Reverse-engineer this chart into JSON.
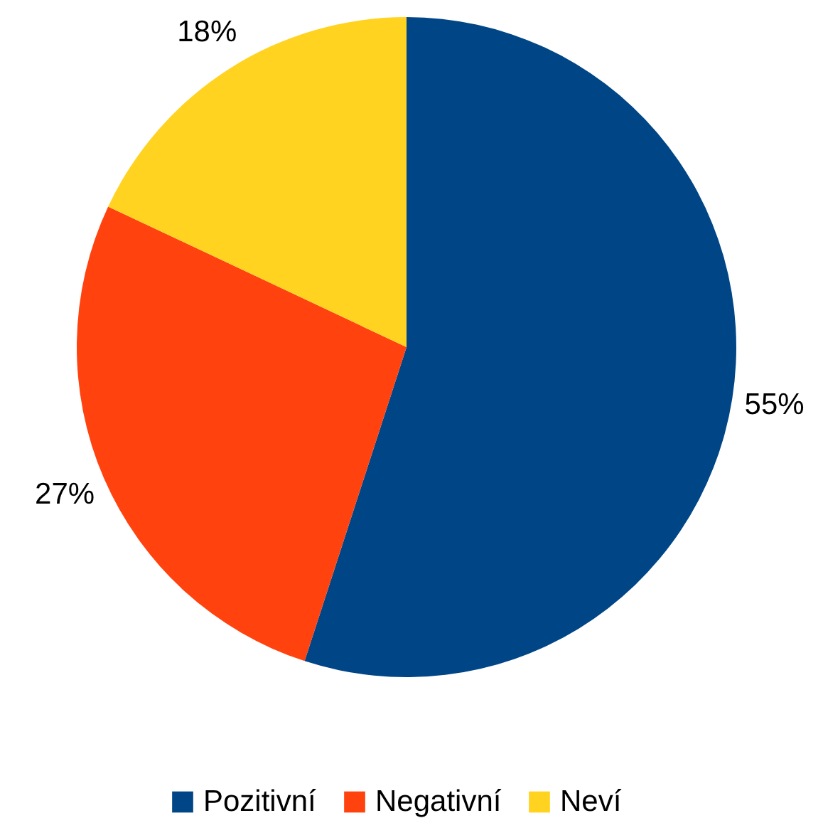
{
  "chart_data": {
    "type": "pie",
    "categories": [
      "Pozitivní",
      "Negativní",
      "Neví"
    ],
    "values": [
      55,
      27,
      18
    ],
    "colors": [
      "#004586",
      "#ff420e",
      "#ffd320"
    ],
    "value_labels": [
      "55%",
      "27%",
      "18%"
    ],
    "legend": "bottom"
  }
}
